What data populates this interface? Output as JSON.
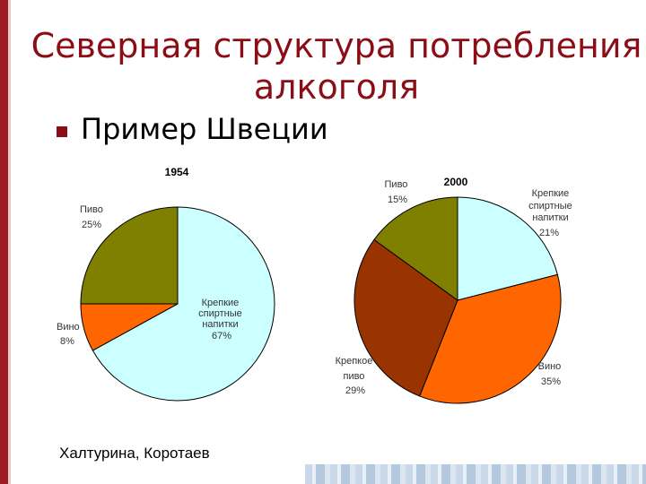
{
  "slide": {
    "title_line1": "Северная структура потребления",
    "title_line2": "алкоголя",
    "subtitle": "Пример Швеции",
    "author": "Халтурина, Коротаев"
  },
  "chart_data": [
    {
      "type": "pie",
      "title": "1954",
      "slices": [
        {
          "name_lines": [
            "Крепкие",
            "спиртные",
            "напитки"
          ],
          "value": 67,
          "label": "67%",
          "color": "#ccffff"
        },
        {
          "name_lines": [
            "Вино"
          ],
          "value": 8,
          "label": "8%",
          "color": "#ff6600"
        },
        {
          "name_lines": [
            "Пиво"
          ],
          "value": 25,
          "label": "25%",
          "color": "#808000"
        }
      ]
    },
    {
      "type": "pie",
      "title": "2000",
      "slices": [
        {
          "name_lines": [
            "Крепкие",
            "спиртные",
            "напитки"
          ],
          "value": 21,
          "label": "21%",
          "color": "#ccffff"
        },
        {
          "name_lines": [
            "Вино"
          ],
          "value": 35,
          "label": "35%",
          "color": "#ff6600"
        },
        {
          "name_lines": [
            "Крепкое",
            "пиво"
          ],
          "value": 29,
          "label": "29%",
          "color": "#993300"
        },
        {
          "name_lines": [
            "Пиво"
          ],
          "value": 15,
          "label": "15%",
          "color": "#808000"
        }
      ]
    }
  ]
}
